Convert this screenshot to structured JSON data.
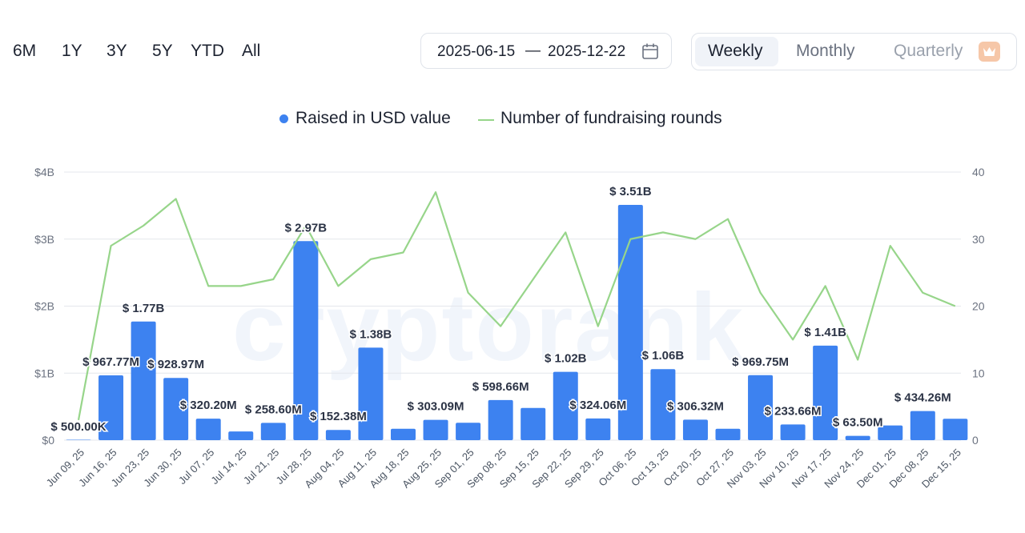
{
  "range_buttons": [
    "6M",
    "1Y",
    "3Y",
    "5Y",
    "YTD",
    "All"
  ],
  "date_range": {
    "start": "2025-06-15",
    "separator": "—",
    "end": "2025-12-22"
  },
  "period_buttons": {
    "weekly": "Weekly",
    "monthly": "Monthly",
    "quarterly": "Quarterly"
  },
  "watermark": "cryptorank",
  "colors": {
    "bar": "#3d82f0",
    "line": "#97d58a",
    "grid": "#e4e7ec",
    "text": "#1c2230"
  },
  "chart_data": {
    "type": "bar",
    "legend": [
      "Raised in USD value",
      "Number of fundraising rounds"
    ],
    "categories": [
      "Jun 09, 25",
      "Jun 16, 25",
      "Jun 23, 25",
      "Jun 30, 25",
      "Jul 07, 25",
      "Jul 14, 25",
      "Jul 21, 25",
      "Jul 28, 25",
      "Aug 04, 25",
      "Aug 11, 25",
      "Aug 18, 25",
      "Aug 25, 25",
      "Sep 01, 25",
      "Sep 08, 25",
      "Sep 15, 25",
      "Sep 22, 25",
      "Sep 29, 25",
      "Oct 06, 25",
      "Oct 13, 25",
      "Oct 20, 25",
      "Oct 27, 25",
      "Nov 03, 25",
      "Nov 10, 25",
      "Nov 17, 25",
      "Nov 24, 25",
      "Dec 01, 25",
      "Dec 08, 25",
      "Dec 15, 25"
    ],
    "y_left": {
      "ticks": [
        "$0",
        "$1B",
        "$2B",
        "$3B",
        "$4B"
      ],
      "range": [
        0,
        4
      ]
    },
    "y_right": {
      "ticks": [
        "0",
        "10",
        "20",
        "30",
        "40"
      ],
      "range": [
        0,
        40
      ]
    },
    "series": [
      {
        "name": "Raised in USD value",
        "type": "bar",
        "values_billion": [
          0.0005,
          0.96777,
          1.77,
          0.92897,
          0.3202,
          0.13,
          0.2586,
          2.97,
          0.15238,
          1.38,
          0.17,
          0.30309,
          0.26,
          0.59866,
          0.48,
          1.02,
          0.32406,
          3.51,
          1.06,
          0.30632,
          0.17,
          0.96975,
          0.23366,
          1.41,
          0.0635,
          0.22,
          0.43426,
          0.32
        ],
        "labels": [
          "$ 500.00K",
          "$ 967.77M",
          "$ 1.77B",
          "$ 928.97M",
          "$ 320.20M",
          "",
          "$ 258.60M",
          "$ 2.97B",
          "$ 152.38M",
          "$ 1.38B",
          "",
          "$ 303.09M",
          "",
          "$ 598.66M",
          "",
          "$ 1.02B",
          "$ 324.06M",
          "$ 3.51B",
          "$ 1.06B",
          "$ 306.32M",
          "",
          "$ 969.75M",
          "$ 233.66M",
          "$ 1.41B",
          "$ 63.50M",
          "",
          "$ 434.26M",
          ""
        ]
      },
      {
        "name": "Number of fundraising rounds",
        "type": "line",
        "values": [
          3,
          29,
          32,
          36,
          23,
          23,
          24,
          32,
          23,
          27,
          28,
          37,
          22,
          17,
          24,
          31,
          17,
          30,
          31,
          30,
          33,
          22,
          15,
          23,
          12,
          29,
          22,
          20
        ]
      }
    ]
  }
}
